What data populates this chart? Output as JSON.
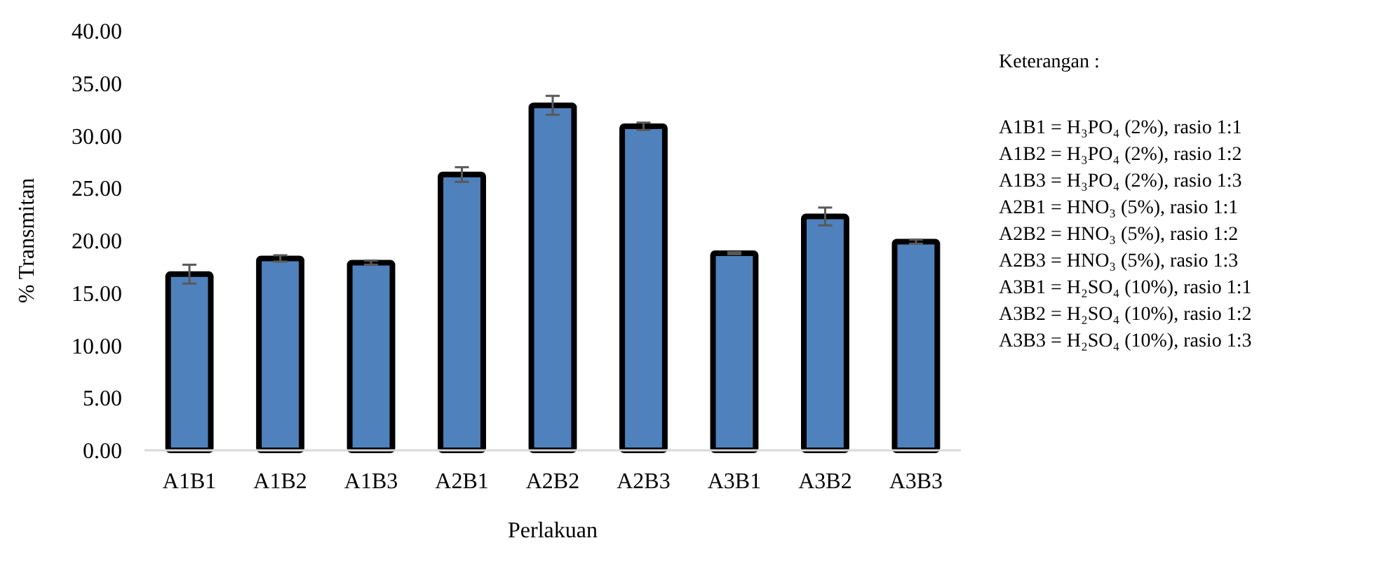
{
  "chart_data": {
    "type": "bar",
    "xlabel": "Perlakuan",
    "ylabel": "% Transmitan",
    "categories": [
      "A1B1",
      "A1B2",
      "A1B3",
      "A2B1",
      "A2B2",
      "A2B3",
      "A3B1",
      "A3B2",
      "A3B3"
    ],
    "values": [
      16.8,
      18.3,
      17.9,
      26.3,
      32.9,
      30.9,
      18.8,
      22.3,
      19.9
    ],
    "errors": [
      0.9,
      0.3,
      0.2,
      0.7,
      0.9,
      0.35,
      0.1,
      0.85,
      0.2
    ],
    "color": "#4f81bd",
    "ylim": [
      0,
      40
    ],
    "yticks": [
      {
        "value": 0,
        "label": "0.00"
      },
      {
        "value": 5,
        "label": "5.00"
      },
      {
        "value": 10,
        "label": "10.00"
      },
      {
        "value": 15,
        "label": "15.00"
      },
      {
        "value": 20,
        "label": "20.00"
      },
      {
        "value": 25,
        "label": "25.00"
      },
      {
        "value": 30,
        "label": "30.00"
      },
      {
        "value": 35,
        "label": "35.00"
      },
      {
        "value": 40,
        "label": "40.00"
      }
    ],
    "grid": false,
    "annotations": [
      "Keterangan :",
      "A1B1 = H₃PO₄ (2%), rasio 1:1",
      "A1B2 = H₃PO₄ (2%), rasio 1:2",
      "A1B3 = H₃PO₄ (2%), rasio 1:3",
      "A2B1 = HNO₃ (5%), rasio 1:1",
      "A2B2 = HNO₃ (5%), rasio 1:2",
      "A2B3 = HNO₃ (5%), rasio 1:3",
      "A3B1 = H₂SO₄ (10%), rasio 1:1",
      "A3B2 = H₂SO₄ (10%), rasio 1:2",
      "A3B3 = H₂SO₄ (10%), rasio 1:3"
    ]
  }
}
